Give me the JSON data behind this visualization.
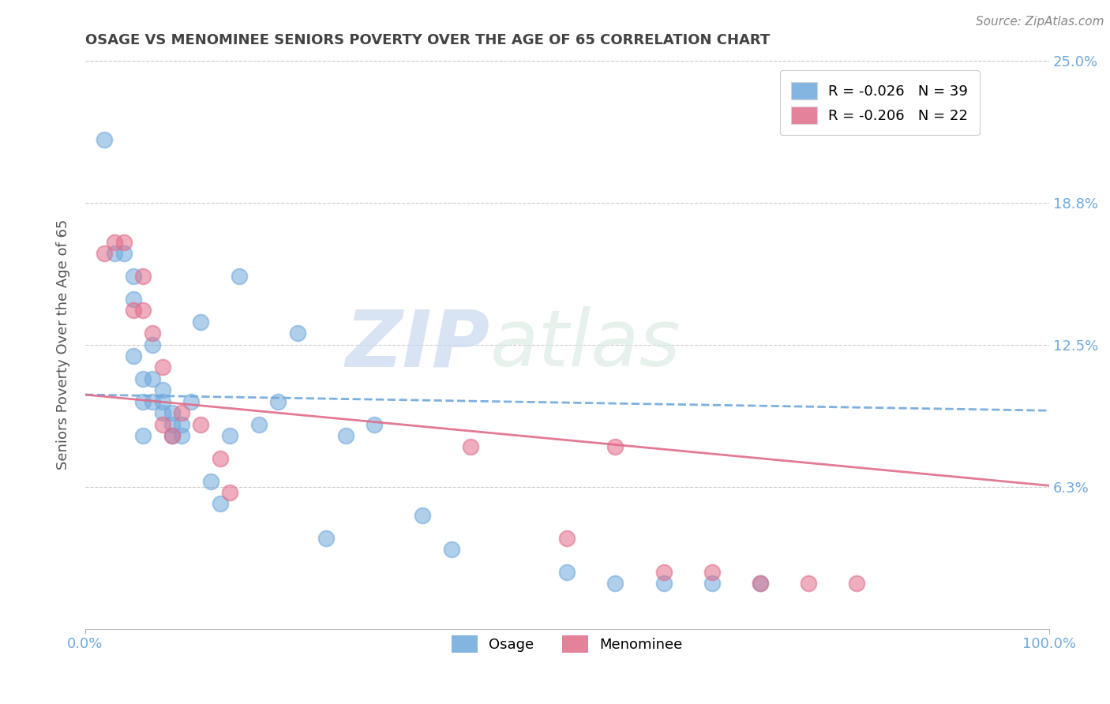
{
  "title": "OSAGE VS MENOMINEE SENIORS POVERTY OVER THE AGE OF 65 CORRELATION CHART",
  "source": "Source: ZipAtlas.com",
  "ylabel": "Seniors Poverty Over the Age of 65",
  "legend_blue_label": "Osage",
  "legend_pink_label": "Menominee",
  "r_blue": "-0.026",
  "n_blue": "39",
  "r_pink": "-0.206",
  "n_pink": "22",
  "xlim": [
    0,
    1.0
  ],
  "ylim": [
    0,
    0.25
  ],
  "yticks": [
    0.0625,
    0.125,
    0.1875,
    0.25
  ],
  "ytick_labels": [
    "6.3%",
    "12.5%",
    "18.8%",
    "25.0%"
  ],
  "xtick_labels": [
    "0.0%",
    "100.0%"
  ],
  "xticks": [
    0.0,
    1.0
  ],
  "blue_color": "#6fa8dc",
  "pink_color": "#e06c8a",
  "grid_color": "#cccccc",
  "background_color": "#ffffff",
  "watermark_zip": "ZIP",
  "watermark_atlas": "atlas",
  "blue_points_x": [
    0.02,
    0.03,
    0.04,
    0.05,
    0.05,
    0.05,
    0.06,
    0.06,
    0.06,
    0.07,
    0.07,
    0.07,
    0.08,
    0.08,
    0.08,
    0.09,
    0.09,
    0.09,
    0.1,
    0.1,
    0.11,
    0.12,
    0.13,
    0.14,
    0.15,
    0.16,
    0.18,
    0.2,
    0.22,
    0.25,
    0.27,
    0.3,
    0.35,
    0.38,
    0.5,
    0.55,
    0.6,
    0.65,
    0.7
  ],
  "blue_points_y": [
    0.215,
    0.165,
    0.165,
    0.155,
    0.145,
    0.12,
    0.11,
    0.1,
    0.085,
    0.125,
    0.11,
    0.1,
    0.105,
    0.1,
    0.095,
    0.095,
    0.09,
    0.085,
    0.09,
    0.085,
    0.1,
    0.135,
    0.065,
    0.055,
    0.085,
    0.155,
    0.09,
    0.1,
    0.13,
    0.04,
    0.085,
    0.09,
    0.05,
    0.035,
    0.025,
    0.02,
    0.02,
    0.02,
    0.02
  ],
  "pink_points_x": [
    0.02,
    0.03,
    0.04,
    0.05,
    0.06,
    0.06,
    0.07,
    0.08,
    0.08,
    0.09,
    0.1,
    0.12,
    0.14,
    0.15,
    0.4,
    0.5,
    0.55,
    0.6,
    0.65,
    0.7,
    0.75,
    0.8
  ],
  "pink_points_y": [
    0.165,
    0.17,
    0.17,
    0.14,
    0.155,
    0.14,
    0.13,
    0.115,
    0.09,
    0.085,
    0.095,
    0.09,
    0.075,
    0.06,
    0.08,
    0.04,
    0.08,
    0.025,
    0.025,
    0.02,
    0.02,
    0.02
  ],
  "title_color": "#434343",
  "axis_label_color": "#555555",
  "tick_label_color": "#6fa8dc",
  "title_fontsize": 13,
  "axis_label_fontsize": 13,
  "tick_fontsize": 13,
  "legend_fontsize": 13,
  "blue_line_start_y": 0.103,
  "blue_line_end_y": 0.096,
  "pink_line_start_y": 0.103,
  "pink_line_end_y": 0.063
}
